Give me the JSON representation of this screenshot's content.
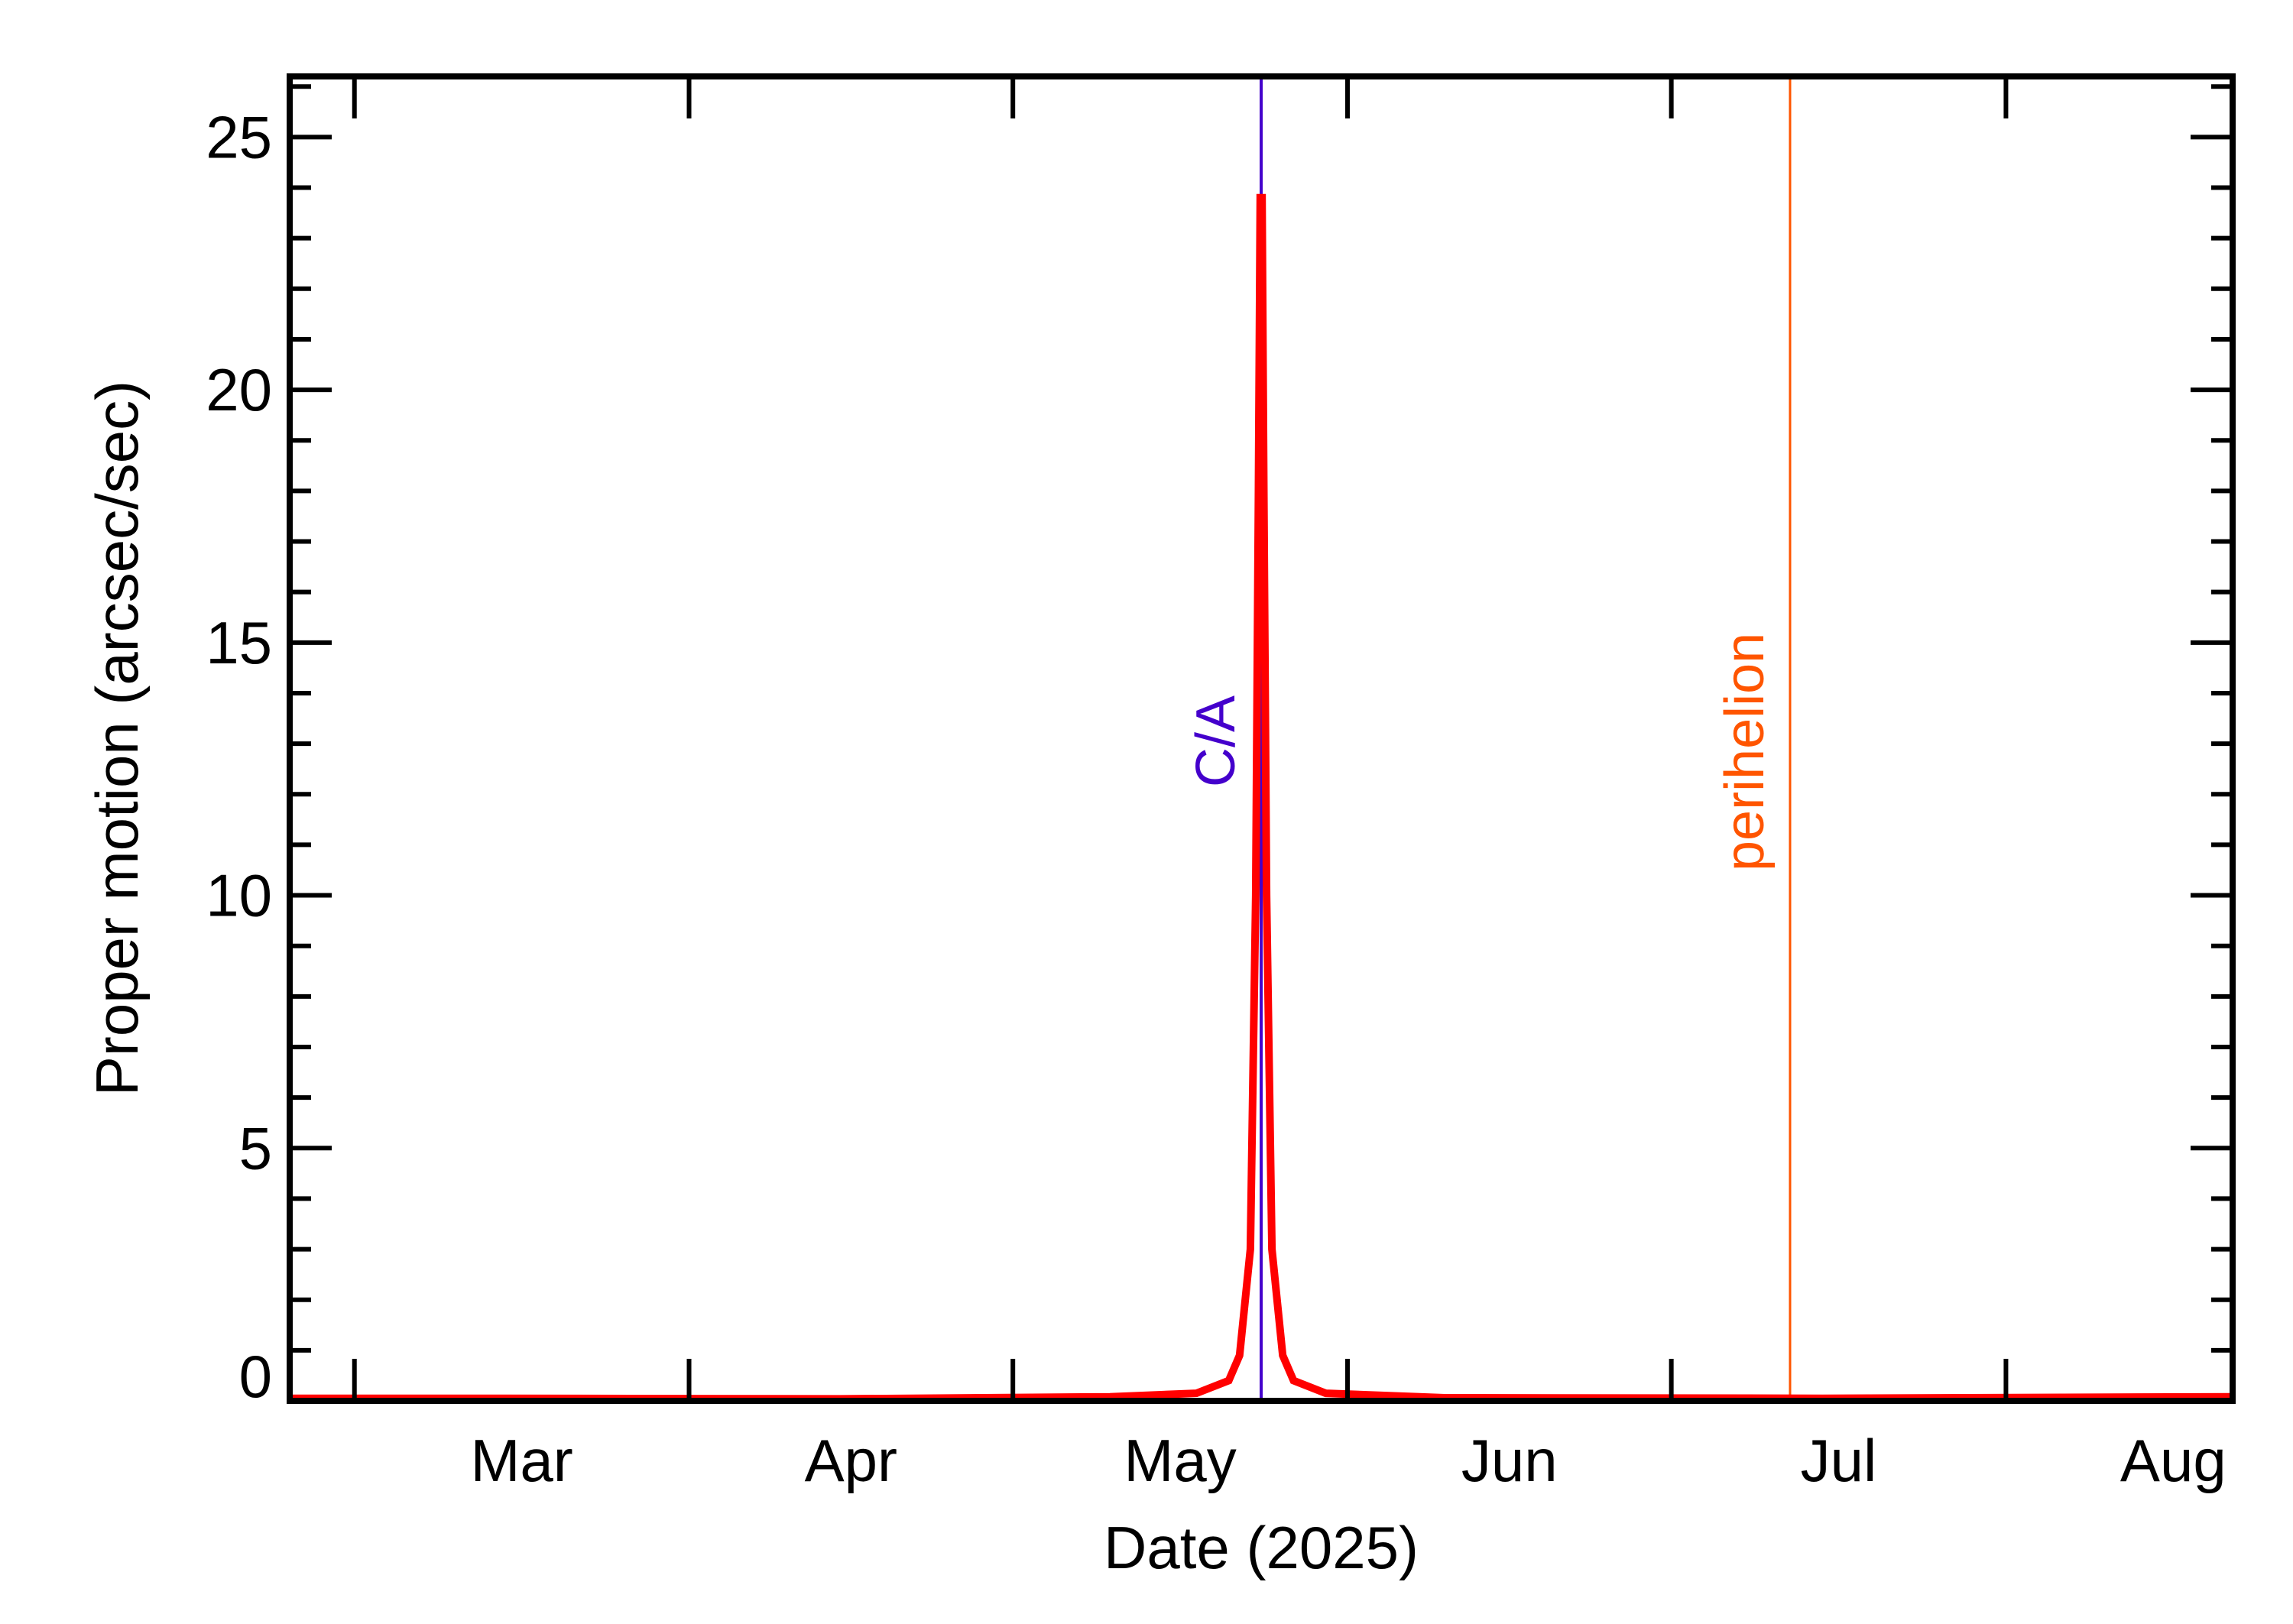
{
  "chart_data": {
    "type": "line",
    "title": "",
    "xlabel": "Date (2025)",
    "ylabel": "Proper motion (arcsec/sec)",
    "xlim": [
      "2025-02-23",
      "2025-08-22"
    ],
    "ylim": [
      0,
      26.2
    ],
    "x_ticks": [
      {
        "date": "2025-03-01",
        "label": "Mar"
      },
      {
        "date": "2025-04-01",
        "label": "Apr"
      },
      {
        "date": "2025-05-01",
        "label": "May"
      },
      {
        "date": "2025-06-01",
        "label": "Jun"
      },
      {
        "date": "2025-07-01",
        "label": "Jul"
      },
      {
        "date": "2025-08-01",
        "label": "Aug"
      },
      {
        "date": "2025-09-01",
        "label": ""
      }
    ],
    "y_ticks": [
      "0",
      "5",
      "10",
      "15",
      "20",
      "25"
    ],
    "y_minor_step": 1,
    "grid": false,
    "series": [
      {
        "color": "#ff0000",
        "x": [
          "2025-02-23",
          "2025-03-15",
          "2025-04-15",
          "2025-05-10",
          "2025-05-18",
          "2025-05-21",
          "2025-05-22",
          "2025-05-23T00:00",
          "2025-05-23T12:00",
          "2025-05-23T18:00",
          "2025-05-23T22:00",
          "2025-05-24T00:00",
          "2025-05-24T02:00",
          "2025-05-24T06:00",
          "2025-05-24T12:00",
          "2025-05-25",
          "2025-05-26",
          "2025-05-27",
          "2025-05-30",
          "2025-06-10",
          "2025-07-15",
          "2025-08-22"
        ],
        "y": [
          0.05,
          0.05,
          0.04,
          0.08,
          0.15,
          0.4,
          0.9,
          3.0,
          10.0,
          18.0,
          23.8,
          23.8,
          23.8,
          18.0,
          10.0,
          3.0,
          0.9,
          0.4,
          0.15,
          0.06,
          0.05,
          0.08
        ]
      }
    ],
    "annotations": [
      {
        "label": "C/A",
        "date": "2025-05-24",
        "color": "#4400cc"
      },
      {
        "label": "perihelion",
        "date": "2025-07-12",
        "color": "#ff5500"
      }
    ]
  }
}
